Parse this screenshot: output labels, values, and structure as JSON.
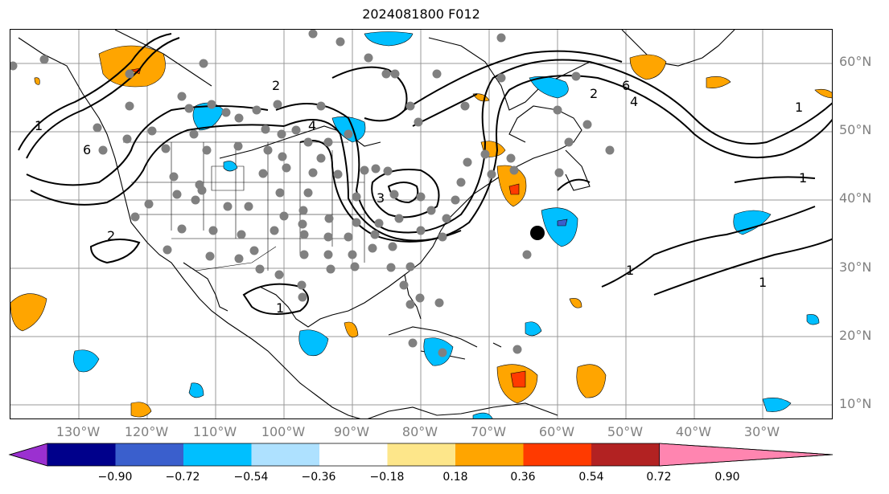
{
  "title": "2024081800 F012",
  "lat_labels": [
    "60°N",
    "50°N",
    "40°N",
    "30°N",
    "20°N",
    "10°N"
  ],
  "lon_labels": [
    "130°W",
    "120°W",
    "110°W",
    "100°W",
    "90°W",
    "80°W",
    "70°W",
    "60°W",
    "50°W",
    "40°W",
    "30°W"
  ],
  "colorbar": {
    "ticks": [
      "−0.90",
      "−0.72",
      "−0.54",
      "−0.36",
      "−0.18",
      "0.18",
      "0.36",
      "0.54",
      "0.72",
      "0.90"
    ],
    "colors": [
      "#9b30d0",
      "#00008b",
      "#3a5fcd",
      "#00bfff",
      "#aee1ff",
      "#ffffff",
      "#fde68a",
      "#ffa500",
      "#ff3a00",
      "#b22222",
      "#ff85b0"
    ]
  },
  "contour_labels": [
    "2",
    "6",
    "4",
    "1",
    "6",
    "2",
    "4",
    "1",
    "1",
    "1",
    "2",
    "1",
    "3",
    "1"
  ]
}
